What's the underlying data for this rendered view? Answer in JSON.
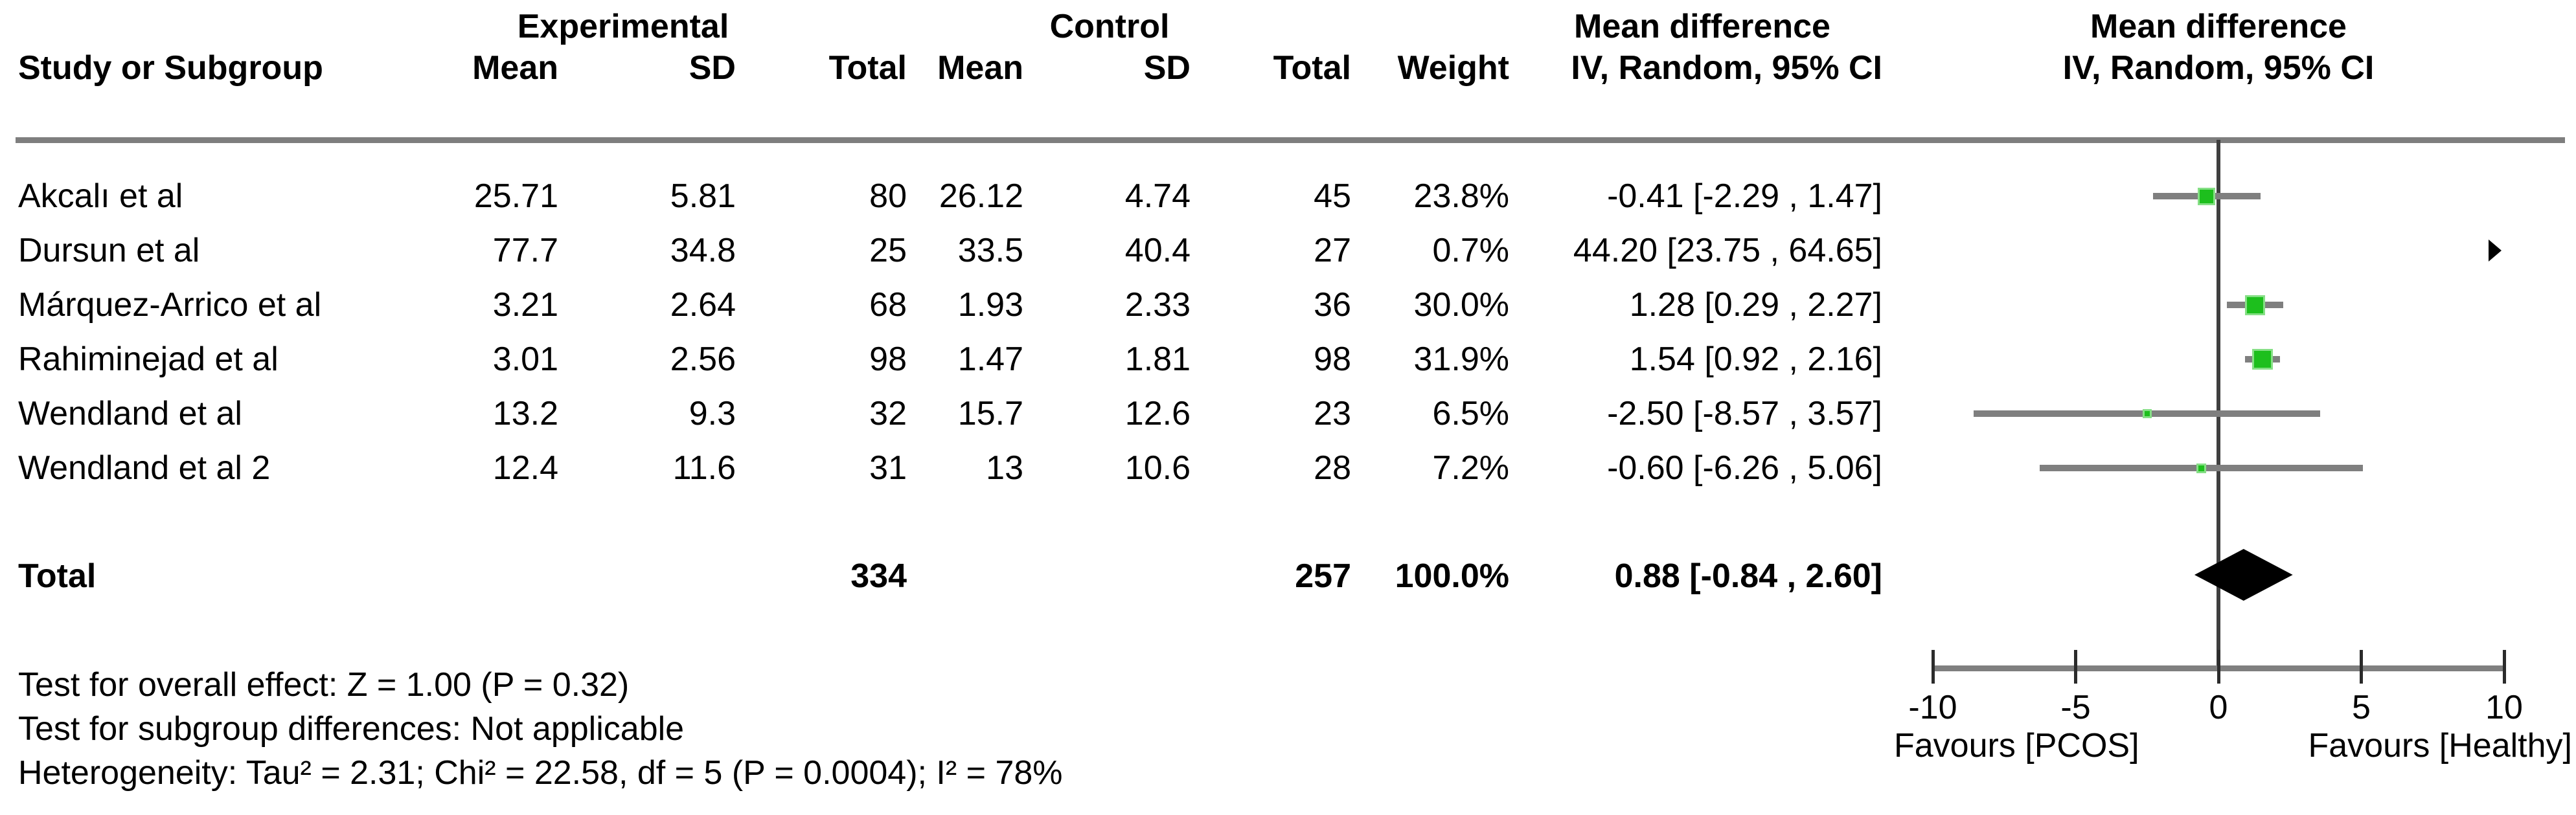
{
  "table": {
    "groups": {
      "experimental": "Experimental",
      "control": "Control",
      "md_col": "Mean difference",
      "md_plot": "Mean difference"
    },
    "columns": {
      "study": "Study or Subgroup",
      "mean": "Mean",
      "sd": "SD",
      "total": "Total",
      "weight": "Weight",
      "ci": "IV, Random, 95% CI"
    }
  },
  "total_row": {
    "label": "Total",
    "exp_total": "334",
    "ctrl_total": "257",
    "weight": "100.0%",
    "md_ci": "0.88 [-0.84 , 2.60]"
  },
  "footer": {
    "overall": "Test for overall effect: Z = 1.00 (P = 0.32)",
    "subgroup": "Test for subgroup differences: Not applicable",
    "heterogeneity": "Heterogeneity: Tau² = 2.31; Chi² = 22.58, df = 5 (P = 0.0004); I² = 78%"
  },
  "colors": {
    "marker_green": "#1DBF1D",
    "marker_green_light": "#86DF86",
    "ci_gray": "#7F7F7F",
    "axis_gray": "#7F7F7F",
    "rule_gray": "#7E7E7E",
    "zero_line": "#3F3F3F",
    "tick_black": "#2B2B2B",
    "diamond_black": "#000000",
    "arrow_black": "#000000"
  },
  "chart_data": {
    "type": "forest",
    "effect_measure": "Mean difference",
    "method": "IV, Random, 95% CI",
    "axis": {
      "min": -10,
      "max": 10,
      "ticks": [
        "-10",
        "-5",
        "0",
        "5",
        "10"
      ],
      "tick_values": [
        -10,
        -5,
        0,
        5,
        10
      ],
      "zero_line": 0,
      "favours_left": "Favours [PCOS]",
      "favours_right": "Favours [Healthy]"
    },
    "studies": [
      {
        "study": "Akcalı et al",
        "exp_mean": "25.71",
        "exp_sd": "5.81",
        "exp_total": "80",
        "ctrl_mean": "26.12",
        "ctrl_sd": "4.74",
        "ctrl_total": "45",
        "weight": "23.8%",
        "md_ci": "-0.41 [-2.29 , 1.47]",
        "md": -0.41,
        "ci_low": -2.29,
        "ci_high": 1.47,
        "weight_pct": 23.8
      },
      {
        "study": "Dursun et al",
        "exp_mean": "77.7",
        "exp_sd": "34.8",
        "exp_total": "25",
        "ctrl_mean": "33.5",
        "ctrl_sd": "40.4",
        "ctrl_total": "27",
        "weight": "0.7%",
        "md_ci": "44.20 [23.75 , 64.65]",
        "md": 44.2,
        "ci_low": 23.75,
        "ci_high": 64.65,
        "weight_pct": 0.7
      },
      {
        "study": "Márquez-Arrico et al",
        "exp_mean": "3.21",
        "exp_sd": "2.64",
        "exp_total": "68",
        "ctrl_mean": "1.93",
        "ctrl_sd": "2.33",
        "ctrl_total": "36",
        "weight": "30.0%",
        "md_ci": "1.28 [0.29 , 2.27]",
        "md": 1.28,
        "ci_low": 0.29,
        "ci_high": 2.27,
        "weight_pct": 30.0
      },
      {
        "study": "Rahiminejad et al",
        "exp_mean": "3.01",
        "exp_sd": "2.56",
        "exp_total": "98",
        "ctrl_mean": "1.47",
        "ctrl_sd": "1.81",
        "ctrl_total": "98",
        "weight": "31.9%",
        "md_ci": "1.54 [0.92 , 2.16]",
        "md": 1.54,
        "ci_low": 0.92,
        "ci_high": 2.16,
        "weight_pct": 31.9
      },
      {
        "study": "Wendland et al",
        "exp_mean": "13.2",
        "exp_sd": "9.3",
        "exp_total": "32",
        "ctrl_mean": "15.7",
        "ctrl_sd": "12.6",
        "ctrl_total": "23",
        "weight": "6.5%",
        "md_ci": "-2.50 [-8.57 , 3.57]",
        "md": -2.5,
        "ci_low": -8.57,
        "ci_high": 3.57,
        "weight_pct": 6.5
      },
      {
        "study": "Wendland et al 2",
        "exp_mean": "12.4",
        "exp_sd": "11.6",
        "exp_total": "31",
        "ctrl_mean": "13",
        "ctrl_sd": "10.6",
        "ctrl_total": "28",
        "weight": "7.2%",
        "md_ci": "-0.60 [-6.26 , 5.06]",
        "md": -0.6,
        "ci_low": -6.26,
        "ci_high": 5.06,
        "weight_pct": 7.2
      }
    ],
    "total": {
      "md": 0.88,
      "ci_low": -0.84,
      "ci_high": 2.6
    }
  }
}
